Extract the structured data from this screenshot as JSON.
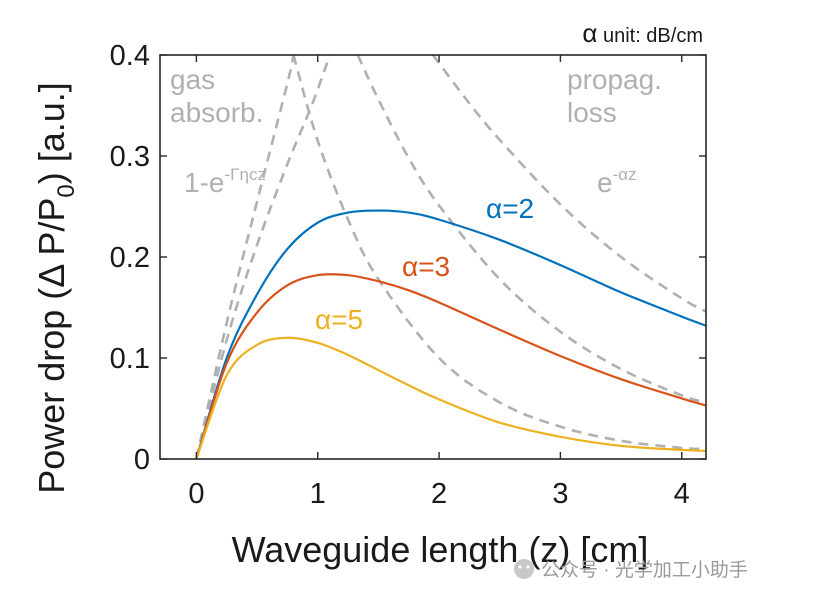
{
  "chart_data": {
    "type": "line",
    "title": "",
    "xlabel": "Waveguide length (z) [cm]",
    "ylabel": "Power drop (Δ P/P",
    "ylabel_subscript": "0",
    "ylabel_suffix": ") [a.u.]",
    "xlim": [
      -0.3,
      4.2
    ],
    "ylim": [
      0,
      0.4
    ],
    "xticks": [
      0,
      1,
      2,
      3,
      4
    ],
    "xtick_labels": [
      "0",
      "1",
      "2",
      "3",
      "4"
    ],
    "yticks": [
      0,
      0.1,
      0.2,
      0.3,
      0.4
    ],
    "ytick_labels": [
      "0",
      "0.1",
      "0.2",
      "0.3",
      "0.4"
    ],
    "unit_note": {
      "symbol": "α",
      "text": " unit: dB/cm"
    },
    "annotations": {
      "gas_line1": "gas",
      "gas_line2": "absorb.",
      "prop_line1": "propag.",
      "prop_line2": "loss",
      "growth_base": "1-e",
      "growth_exp": "-Γηcz",
      "decay_base": "e",
      "decay_exp": "-αz"
    },
    "series": [
      {
        "name": "α=2",
        "alpha": 2,
        "color": "#0072BD",
        "x": [
          0,
          0.25,
          0.5,
          0.75,
          1.0,
          1.25,
          1.5,
          1.75,
          2.0,
          2.5,
          3.0,
          3.5,
          4.0,
          4.2
        ],
        "values": [
          0.0,
          0.1,
          0.163,
          0.208,
          0.234,
          0.244,
          0.246,
          0.244,
          0.237,
          0.217,
          0.192,
          0.165,
          0.141,
          0.132
        ]
      },
      {
        "name": "α=3",
        "alpha": 3,
        "color": "#D95319",
        "x": [
          0,
          0.25,
          0.5,
          0.75,
          1.0,
          1.25,
          1.5,
          1.75,
          2.0,
          2.5,
          3.0,
          3.5,
          4.0,
          4.2
        ],
        "values": [
          0.0,
          0.095,
          0.145,
          0.172,
          0.182,
          0.182,
          0.176,
          0.167,
          0.155,
          0.128,
          0.102,
          0.079,
          0.06,
          0.053
        ]
      },
      {
        "name": "α=5",
        "alpha": 5,
        "color": "#EDB120",
        "x": [
          0,
          0.25,
          0.5,
          0.75,
          1.0,
          1.25,
          1.5,
          1.75,
          2.0,
          2.5,
          3.0,
          3.5,
          4.0,
          4.2
        ],
        "values": [
          0.0,
          0.083,
          0.113,
          0.12,
          0.115,
          0.103,
          0.088,
          0.073,
          0.059,
          0.036,
          0.022,
          0.013,
          0.009,
          0.008
        ]
      }
    ],
    "envelopes": [
      {
        "name": "1-e^(-Γηcz)",
        "style": "dashed",
        "color": "#b0b0b0",
        "x": [
          0,
          0.25,
          0.5,
          0.75,
          0.95,
          1.1
        ],
        "values": [
          0.0,
          0.118,
          0.212,
          0.292,
          0.35,
          0.4
        ]
      },
      {
        "name": "1-e^(-Γηcz) b",
        "style": "dashed",
        "color": "#b0b0b0",
        "x": [
          0,
          0.25,
          0.5,
          0.75,
          0.8
        ],
        "values": [
          0.0,
          0.135,
          0.255,
          0.372,
          0.4
        ]
      },
      {
        "name": "e^(-αz) α=5",
        "style": "dashed",
        "color": "#b0b0b0",
        "x": [
          0.8,
          1.0,
          1.25,
          1.5,
          2.0,
          2.5,
          3.0,
          3.5,
          4.0,
          4.2
        ],
        "values": [
          0.4,
          0.315,
          0.237,
          0.178,
          0.1,
          0.056,
          0.032,
          0.018,
          0.011,
          0.01
        ]
      },
      {
        "name": "e^(-αz) α=3",
        "style": "dashed",
        "color": "#b0b0b0",
        "x": [
          1.33,
          1.5,
          1.75,
          2.0,
          2.5,
          3.0,
          3.5,
          4.0,
          4.2
        ],
        "values": [
          0.4,
          0.356,
          0.298,
          0.251,
          0.178,
          0.126,
          0.089,
          0.063,
          0.056
        ]
      },
      {
        "name": "e^(-αz) α=2",
        "style": "dashed",
        "color": "#b0b0b0",
        "x": [
          1.95,
          2.25,
          2.5,
          3.0,
          3.5,
          4.0,
          4.2
        ],
        "values": [
          0.4,
          0.352,
          0.316,
          0.252,
          0.2,
          0.159,
          0.146
        ]
      }
    ]
  },
  "watermark": {
    "text": "公众号 · 光学加工小助手"
  }
}
